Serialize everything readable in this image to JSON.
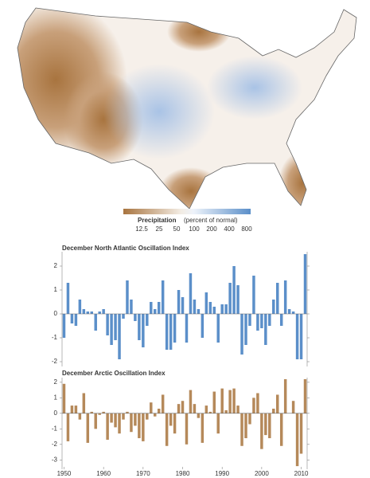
{
  "map": {
    "legend": {
      "title": "Precipitation",
      "subtitle": "(percent of normal)",
      "labels": [
        "12.5",
        "25",
        "50",
        "100",
        "200",
        "400",
        "800"
      ]
    }
  },
  "chart_data": [
    {
      "type": "bar",
      "title": "December North Atlantic Oscillation Index",
      "color": "#5b8fc9",
      "x": [
        1950,
        1951,
        1952,
        1953,
        1954,
        1955,
        1956,
        1957,
        1958,
        1959,
        1960,
        1961,
        1962,
        1963,
        1964,
        1965,
        1966,
        1967,
        1968,
        1969,
        1970,
        1971,
        1972,
        1973,
        1974,
        1975,
        1976,
        1977,
        1978,
        1979,
        1980,
        1981,
        1982,
        1983,
        1984,
        1985,
        1986,
        1987,
        1988,
        1989,
        1990,
        1991,
        1992,
        1993,
        1994,
        1995,
        1996,
        1997,
        1998,
        1999,
        2000,
        2001,
        2002,
        2003,
        2004,
        2005,
        2006,
        2007,
        2008,
        2009,
        2010,
        2011
      ],
      "values": [
        -1.0,
        1.3,
        -0.4,
        -0.5,
        0.6,
        0.2,
        0.1,
        0.1,
        -0.7,
        0.1,
        0.2,
        -0.9,
        -1.3,
        -1.1,
        -1.9,
        -0.2,
        1.4,
        0.6,
        -0.3,
        -1.1,
        -1.4,
        -0.5,
        0.5,
        0.2,
        0.5,
        1.4,
        -1.5,
        -1.5,
        -1.2,
        1.0,
        0.7,
        -1.2,
        1.7,
        0.6,
        0.2,
        -1.0,
        0.9,
        0.5,
        0.3,
        -1.2,
        0.4,
        0.4,
        1.3,
        2.0,
        1.2,
        -1.7,
        -1.3,
        -0.5,
        1.6,
        -0.7,
        -0.6,
        -1.3,
        -0.5,
        0.6,
        1.3,
        -0.5,
        1.4,
        0.2,
        0.1,
        -1.9,
        -1.9,
        2.5
      ],
      "xlim": [
        1949.5,
        2011.5
      ],
      "ylim": [
        -2.2,
        2.6
      ],
      "yticks": [
        -2,
        -1,
        0,
        1,
        2
      ]
    },
    {
      "type": "bar",
      "title": "December Arctic Oscillation Index",
      "color": "#b5895a",
      "x": [
        1950,
        1951,
        1952,
        1953,
        1954,
        1955,
        1956,
        1957,
        1958,
        1959,
        1960,
        1961,
        1962,
        1963,
        1964,
        1965,
        1966,
        1967,
        1968,
        1969,
        1970,
        1971,
        1972,
        1973,
        1974,
        1975,
        1976,
        1977,
        1978,
        1979,
        1980,
        1981,
        1982,
        1983,
        1984,
        1985,
        1986,
        1987,
        1988,
        1989,
        1990,
        1991,
        1992,
        1993,
        1994,
        1995,
        1996,
        1997,
        1998,
        1999,
        2000,
        2001,
        2002,
        2003,
        2004,
        2005,
        2006,
        2007,
        2008,
        2009,
        2010,
        2011
      ],
      "values": [
        1.9,
        -1.8,
        0.5,
        0.5,
        -0.4,
        1.3,
        -1.9,
        0.1,
        -1.0,
        -0.1,
        0.1,
        -1.7,
        -0.6,
        -0.9,
        -1.3,
        -0.4,
        0.1,
        -1.2,
        -0.8,
        -1.6,
        -1.8,
        -0.4,
        0.7,
        -0.2,
        0.3,
        1.2,
        -2.1,
        -0.8,
        -1.3,
        0.6,
        0.8,
        -2.0,
        1.5,
        0.6,
        -0.3,
        -1.9,
        0.5,
        0.1,
        1.4,
        -1.3,
        1.6,
        0.2,
        1.5,
        1.6,
        0.5,
        -2.1,
        -1.6,
        -0.7,
        1.0,
        1.3,
        -2.3,
        -1.4,
        -1.6,
        0.3,
        1.2,
        -2.1,
        2.2,
        0.0,
        0.8,
        -3.4,
        -2.6,
        2.2
      ],
      "xlim": [
        1949.5,
        2011.5
      ],
      "ylim": [
        -3.6,
        2.3
      ],
      "yticks": [
        -3,
        -2,
        -1,
        0,
        1,
        2
      ],
      "xticks": [
        1950,
        1960,
        1970,
        1980,
        1990,
        2000,
        2010
      ]
    }
  ]
}
